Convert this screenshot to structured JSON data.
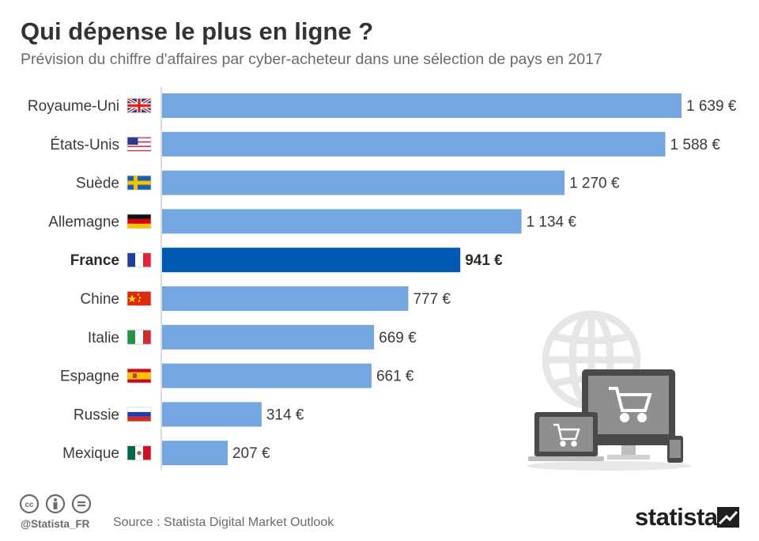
{
  "chart_data": {
    "type": "bar",
    "orientation": "horizontal",
    "title": "Qui dépense le plus en ligne ?",
    "subtitle": "Prévision du chiffre d'affaires par cyber-acheteur dans une sélection de pays en 2017",
    "categories": [
      "Royaume-Uni",
      "États-Unis",
      "Suède",
      "Allemagne",
      "France",
      "Chine",
      "Italie",
      "Espagne",
      "Russie",
      "Mexique"
    ],
    "values": [
      1639,
      1588,
      1270,
      1134,
      941,
      777,
      669,
      661,
      314,
      207
    ],
    "value_labels": [
      "1 639 €",
      "1 588 €",
      "1 270 €",
      "1 134 €",
      "941 €",
      "777 €",
      "669 €",
      "661 €",
      "314 €",
      "207 €"
    ],
    "flags": [
      "gb",
      "us",
      "se",
      "de",
      "fr",
      "cn",
      "it",
      "es",
      "ru",
      "mx"
    ],
    "highlight": "France",
    "xlim": [
      0,
      1639
    ],
    "unit": "€",
    "colors": {
      "bar": "#76a6e0",
      "highlight": "#005ab4"
    }
  },
  "footer": {
    "handle": "@Statista_FR",
    "source": "Source : Statista Digital Market Outlook",
    "brand": "statista"
  },
  "icons": [
    "cc-icon",
    "attribution-icon",
    "no-derivatives-icon",
    "globe-icon",
    "desktop-icon",
    "laptop-icon",
    "phone-icon",
    "cart-icon",
    "statista-logo-icon"
  ]
}
